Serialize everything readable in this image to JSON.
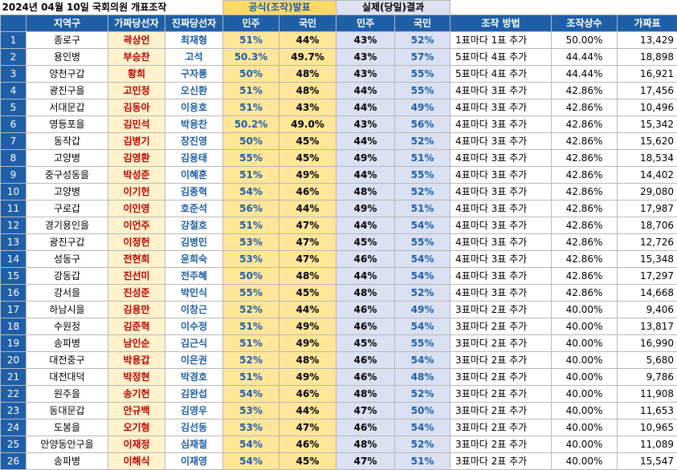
{
  "title": "2024년 04월 10일  국회의원 개표조작",
  "section_official": "공식(조작)발표",
  "section_actual": "실제(당일)결과",
  "headers": [
    "",
    "지역구",
    "가짜당선자",
    "진짜당선자",
    "민주",
    "국민",
    "민주",
    "국민",
    "조작 방법",
    "조작상수",
    "가짜표"
  ],
  "rows": [
    [
      "1",
      "종로구",
      "곽상언",
      "최재형",
      "51%",
      "44%",
      "43%",
      "52%",
      "1표마다 1표 추가",
      "50.00%",
      "13,429"
    ],
    [
      "2",
      "용인병",
      "부승찬",
      "고석",
      "50.3%",
      "49.7%",
      "43%",
      "57%",
      "5표마다 4표 추가",
      "44.44%",
      "18,898"
    ],
    [
      "3",
      "양천구갑",
      "황희",
      "구자룡",
      "50%",
      "48%",
      "43%",
      "55%",
      "5표마다 4표 추가",
      "44.44%",
      "16,921"
    ],
    [
      "4",
      "광진구을",
      "고민정",
      "오신환",
      "51%",
      "48%",
      "44%",
      "55%",
      "4표마다 3표 추가",
      "42.86%",
      "17,456"
    ],
    [
      "5",
      "서대문갑",
      "김동아",
      "이용호",
      "51%",
      "43%",
      "44%",
      "49%",
      "4표마다 3표 추가",
      "42.86%",
      "10,496"
    ],
    [
      "6",
      "영등포을",
      "김민석",
      "박용찬",
      "50.2%",
      "49.0%",
      "43%",
      "56%",
      "4표마다 3표 추가",
      "42.86%",
      "15,342"
    ],
    [
      "7",
      "동작갑",
      "김병기",
      "장진영",
      "50%",
      "45%",
      "44%",
      "52%",
      "4표마다 3표 추가",
      "42.86%",
      "15,620"
    ],
    [
      "8",
      "고양병",
      "김영환",
      "김용태",
      "55%",
      "45%",
      "49%",
      "51%",
      "4표마다 3표 추가",
      "42.86%",
      "18,534"
    ],
    [
      "9",
      "중구성동을",
      "박성준",
      "이혜훈",
      "51%",
      "49%",
      "44%",
      "55%",
      "4표마다 3표 추가",
      "42.86%",
      "14,402"
    ],
    [
      "10",
      "고양병",
      "이기헌",
      "김종혁",
      "54%",
      "46%",
      "48%",
      "52%",
      "4표마다 3표 추가",
      "42.86%",
      "29,080"
    ],
    [
      "11",
      "구로갑",
      "이인영",
      "호준석",
      "56%",
      "44%",
      "49%",
      "51%",
      "4표마다 3표 추가",
      "42.86%",
      "17,987"
    ],
    [
      "12",
      "경기용인을",
      "이언주",
      "강철호",
      "51%",
      "47%",
      "44%",
      "54%",
      "4표마다 3표 추가",
      "42.86%",
      "18,706"
    ],
    [
      "13",
      "광진구갑",
      "이정헌",
      "김병민",
      "53%",
      "47%",
      "45%",
      "55%",
      "4표마다 3표 추가",
      "42.86%",
      "12,726"
    ],
    [
      "14",
      "성동구",
      "전현희",
      "윤희숙",
      "53%",
      "47%",
      "46%",
      "54%",
      "4표마다 3표 추가",
      "42.86%",
      "15,348"
    ],
    [
      "15",
      "강동갑",
      "진선미",
      "전주혜",
      "50%",
      "48%",
      "44%",
      "54%",
      "4표마다 3표 추가",
      "42.86%",
      "17,297"
    ],
    [
      "16",
      "강서을",
      "진성준",
      "박민식",
      "55%",
      "45%",
      "48%",
      "52%",
      "4표마다 3표 추가",
      "42.86%",
      "14,668"
    ],
    [
      "17",
      "하남시을",
      "김용만",
      "이창근",
      "52%",
      "44%",
      "46%",
      "49%",
      "3표마다 2표 추가",
      "40.00%",
      "9,406"
    ],
    [
      "18",
      "수원정",
      "김준혁",
      "이수정",
      "51%",
      "49%",
      "46%",
      "54%",
      "3표마다 2표 추가",
      "40.00%",
      "13,817"
    ],
    [
      "19",
      "송파병",
      "남인순",
      "김근식",
      "51%",
      "49%",
      "45%",
      "55%",
      "3표마다 2표 추가",
      "40.00%",
      "16,990"
    ],
    [
      "20",
      "대전중구",
      "박용갑",
      "이은권",
      "52%",
      "48%",
      "46%",
      "54%",
      "3표마다 2표 추가",
      "40.00%",
      "5,680"
    ],
    [
      "21",
      "대전대덕",
      "박정현",
      "박경호",
      "51%",
      "49%",
      "46%",
      "48%",
      "3표마다 2표 추가",
      "40.00%",
      "9,786"
    ],
    [
      "22",
      "원주을",
      "송기헌",
      "김완섭",
      "54%",
      "46%",
      "48%",
      "52%",
      "3표마다 2표 추가",
      "40.00%",
      "11,908"
    ],
    [
      "23",
      "동대문갑",
      "안규백",
      "김영우",
      "53%",
      "44%",
      "47%",
      "50%",
      "3표마다 2표 추가",
      "40.00%",
      "11,653"
    ],
    [
      "24",
      "도봉을",
      "오기형",
      "김선동",
      "53%",
      "47%",
      "46%",
      "54%",
      "3표마다 2표 추가",
      "40.00%",
      "10,965"
    ],
    [
      "25",
      "안양동안구을",
      "이재정",
      "심재철",
      "54%",
      "46%",
      "48%",
      "52%",
      "3표마다 2표 추가",
      "40.00%",
      "11,089"
    ],
    [
      "26",
      "송파병",
      "이해식",
      "이재영",
      "54%",
      "45%",
      "47%",
      "51%",
      "3표마다 2표 추가",
      "40.00%",
      "15,547"
    ]
  ]
}
